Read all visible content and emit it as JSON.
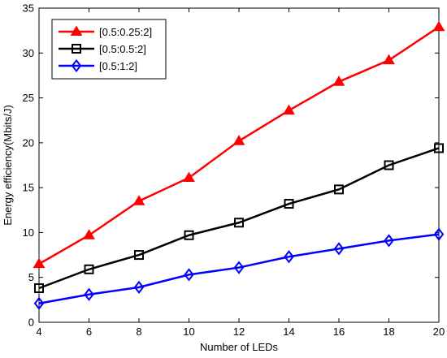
{
  "chart_data": {
    "type": "line",
    "title": "",
    "xlabel": "Number of LEDs",
    "ylabel": "Energy efficiency(Mbits/J)",
    "x": [
      4,
      6,
      8,
      10,
      12,
      14,
      16,
      18,
      20
    ],
    "xlim": [
      4,
      20
    ],
    "ylim": [
      0,
      35
    ],
    "xticks": [
      "4",
      "6",
      "8",
      "10",
      "12",
      "14",
      "16",
      "18",
      "20"
    ],
    "yticks": [
      "0",
      "5",
      "10",
      "15",
      "20",
      "25",
      "30",
      "35"
    ],
    "grid": false,
    "legend_position": "top-left",
    "series": [
      {
        "name": "[0.5:0.25:2]",
        "color": "#ff0000",
        "marker": "triangle",
        "values": [
          6.5,
          9.7,
          13.5,
          16.1,
          20.2,
          23.6,
          26.8,
          29.2,
          32.9
        ]
      },
      {
        "name": "[0.5:0.5:2]",
        "color": "#000000",
        "marker": "square",
        "values": [
          3.8,
          5.9,
          7.5,
          9.7,
          11.1,
          13.2,
          14.8,
          17.5,
          19.4
        ]
      },
      {
        "name": "[0.5:1:2]",
        "color": "#0000ff",
        "marker": "diamond",
        "values": [
          2.1,
          3.1,
          3.9,
          5.3,
          6.1,
          7.3,
          8.2,
          9.1,
          9.8
        ]
      }
    ]
  }
}
